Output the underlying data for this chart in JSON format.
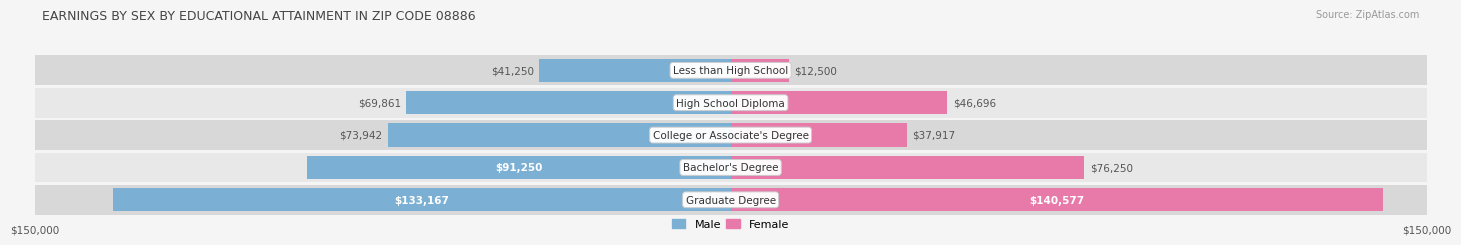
{
  "title": "EARNINGS BY SEX BY EDUCATIONAL ATTAINMENT IN ZIP CODE 08886",
  "source": "Source: ZipAtlas.com",
  "categories": [
    "Graduate Degree",
    "Bachelor's Degree",
    "College or Associate's Degree",
    "High School Diploma",
    "Less than High School"
  ],
  "male_values": [
    133167,
    91250,
    73942,
    69861,
    41250
  ],
  "female_values": [
    140577,
    76250,
    37917,
    46696,
    12500
  ],
  "male_color": "#7bafd4",
  "female_color": "#e87aaa",
  "male_label": "Male",
  "female_label": "Female",
  "x_max": 150000,
  "axis_label_left": "$150,000",
  "axis_label_right": "$150,000",
  "male_text_colors": [
    "#ffffff",
    "#ffffff",
    "#555555",
    "#555555",
    "#555555"
  ],
  "female_text_colors": [
    "#ffffff",
    "#555555",
    "#555555",
    "#555555",
    "#555555"
  ],
  "row_bg_colors": [
    "#d8d8d8",
    "#e8e8e8",
    "#d8d8d8",
    "#e8e8e8",
    "#d8d8d8"
  ],
  "title_color": "#444444",
  "source_color": "#999999",
  "fig_bg": "#f5f5f5"
}
